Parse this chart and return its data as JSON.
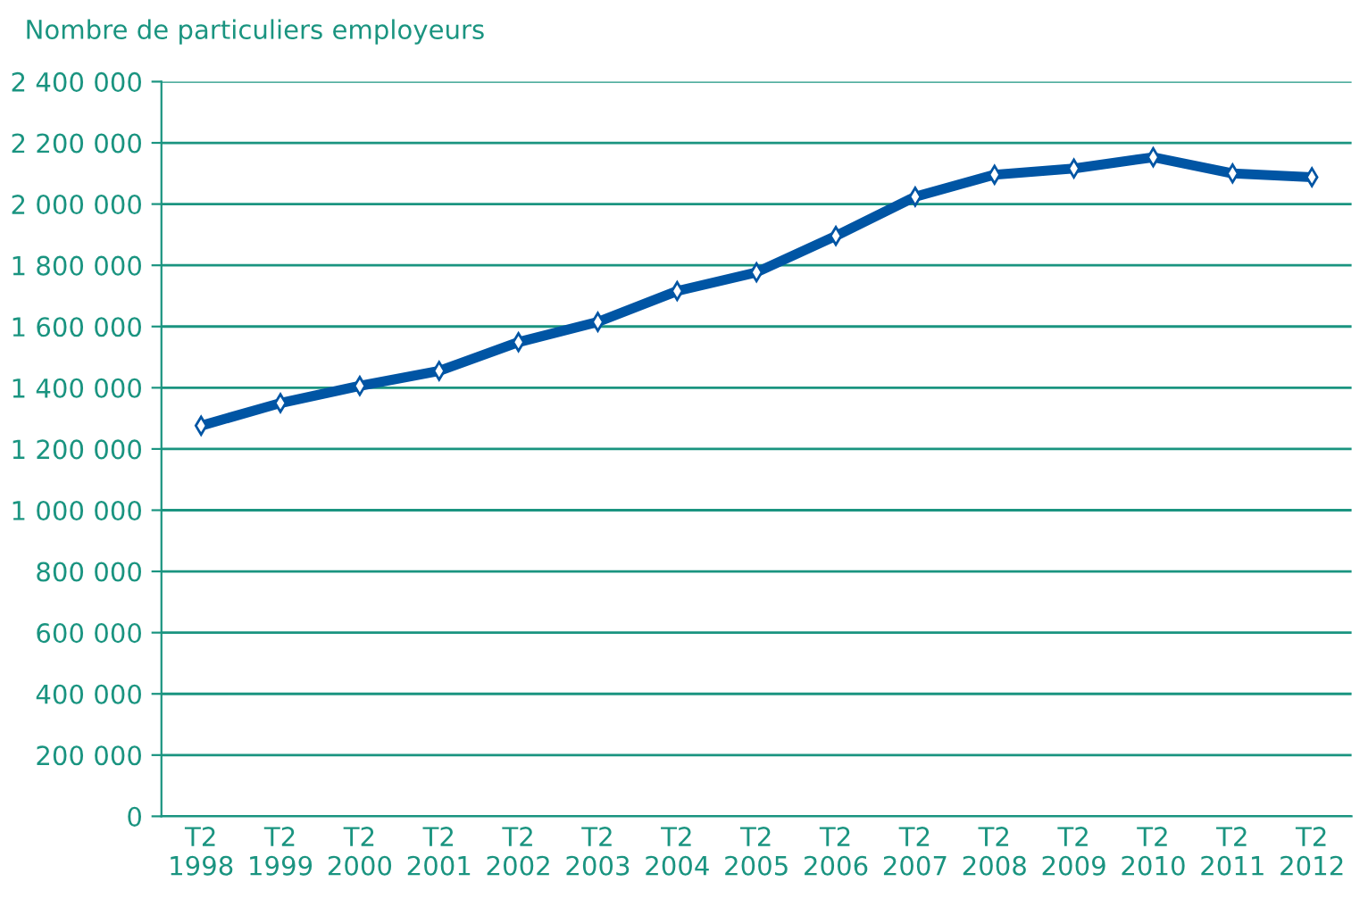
{
  "chart_data": {
    "type": "line",
    "ylabel": "Nombre de particuliers employeurs",
    "categories": [
      "T2\n1998",
      "T2\n1999",
      "T2\n2000",
      "T2\n2001",
      "T2\n2002",
      "T2\n2003",
      "T2\n2004",
      "T2\n2005",
      "T2\n2006",
      "T2\n2007",
      "T2\n2008",
      "T2\n2009",
      "T2\n2010",
      "T2\n2011",
      "T2\n2012"
    ],
    "series": [
      {
        "color": "#0055a4",
        "values": [
          1276000,
          1350000,
          1406000,
          1455000,
          1549000,
          1615000,
          1716000,
          1777000,
          1896000,
          2024000,
          2096000,
          2116000,
          2153000,
          2100000,
          2088000
        ]
      }
    ],
    "ylim": [
      0,
      2400000
    ],
    "yticks": [
      0,
      {
        "value": 200000,
        "label": "200 000"
      },
      {
        "value": 400000,
        "label": "400 000"
      },
      {
        "value": 600000,
        "label": "600 000"
      },
      {
        "value": 800000,
        "label": "800 000"
      },
      {
        "value": 1000000,
        "label": "1 000 000"
      },
      {
        "value": 1200000,
        "label": "1 200 000"
      },
      {
        "value": 1400000,
        "label": "1 400 000"
      },
      {
        "value": 1600000,
        "label": "1 600 000"
      },
      {
        "value": 1800000,
        "label": "1 800 000"
      },
      {
        "value": 2000000,
        "label": "2 000 000"
      },
      {
        "value": 2200000,
        "label": "2 200 000"
      },
      {
        "value": 2400000,
        "label": "2 400 000"
      }
    ],
    "grid": "y",
    "marker": "diamond",
    "line_style": "solid",
    "legend": false
  }
}
